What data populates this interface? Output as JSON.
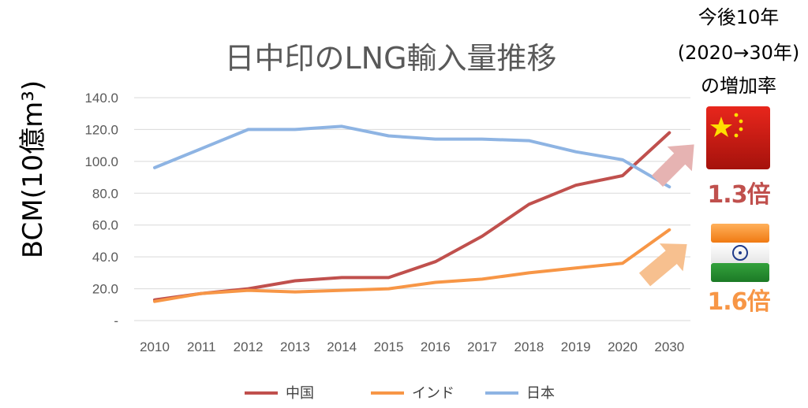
{
  "chart_data": {
    "type": "line",
    "title": "日中印のLNG輸入量推移",
    "ylabel": "BCM(10億m³)",
    "categories": [
      "2010",
      "2011",
      "2012",
      "2013",
      "2014",
      "2015",
      "2016",
      "2017",
      "2018",
      "2019",
      "2020",
      "2030"
    ],
    "y_ticks": [
      "-",
      "20.0",
      "40.0",
      "60.0",
      "80.0",
      "100.0",
      "120.0",
      "140.0"
    ],
    "ylim": [
      0,
      140
    ],
    "grid": true,
    "legend_position": "bottom",
    "series": [
      {
        "name": "中国",
        "color": "#c0504d",
        "values": [
          13,
          17,
          20,
          25,
          27,
          27,
          37,
          53,
          73,
          85,
          91,
          118
        ]
      },
      {
        "name": "インド",
        "color": "#f79646",
        "values": [
          12,
          17,
          19,
          18,
          19,
          20,
          24,
          26,
          30,
          33,
          36,
          57
        ]
      },
      {
        "name": "日本",
        "color": "#8eb4e3",
        "values": [
          96,
          108,
          120,
          120,
          122,
          116,
          114,
          114,
          113,
          106,
          101,
          84
        ]
      }
    ]
  },
  "annotation": {
    "heading_lines": [
      "今後10年",
      "(2020→30年)",
      "の増加率"
    ],
    "china_rate": "1.3倍",
    "india_rate": "1.6倍",
    "china_color": "#c0504d",
    "india_color": "#f79646",
    "china_flag_icon": "china-flag-icon",
    "india_flag_icon": "india-flag-icon"
  }
}
